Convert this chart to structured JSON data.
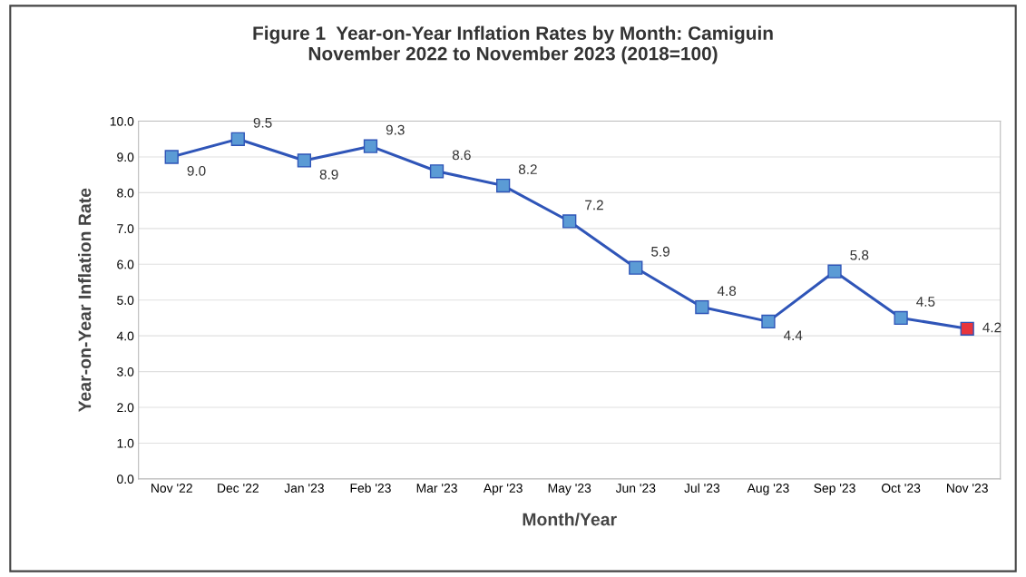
{
  "chart_data": {
    "type": "line",
    "title": "Figure 1  Year-on-Year Inflation Rates by Month: Camiguin\nNovember 2022 to November 2023 (2018=100)",
    "xlabel": "Month/Year",
    "ylabel": "Year-on-Year Inflation Rate",
    "categories": [
      "Nov '22",
      "Dec '22",
      "Jan '23",
      "Feb '23",
      "Mar '23",
      "Apr '23",
      "May '23",
      "Jun '23",
      "Jul '23",
      "Aug '23",
      "Sep '23",
      "Oct '23",
      "Nov '23"
    ],
    "series": [
      {
        "color": "#2f55b8",
        "values": [
          9.0,
          9.5,
          8.9,
          9.3,
          8.6,
          8.2,
          7.2,
          5.9,
          4.8,
          4.4,
          5.8,
          4.5,
          4.2
        ],
        "colors": [
          "#5b9bd5",
          "#5b9bd5",
          "#5b9bd5",
          "#5b9bd5",
          "#5b9bd5",
          "#5b9bd5",
          "#5b9bd5",
          "#5b9bd5",
          "#5b9bd5",
          "#5b9bd5",
          "#5b9bd5",
          "#5b9bd5",
          "#e8353d"
        ],
        "value_labels": [
          "9.0",
          "9.5",
          "8.9",
          "9.3",
          "8.6",
          "8.2",
          "7.2",
          "5.9",
          "4.8",
          "4.4",
          "5.8",
          "4.5",
          "4.2"
        ]
      }
    ],
    "ylim": [
      0,
      10
    ],
    "yticks": [
      {
        "value": 0,
        "label": "0.0"
      },
      {
        "value": 1,
        "label": "1.0"
      },
      {
        "value": 2,
        "label": "2.0"
      },
      {
        "value": 3,
        "label": "3.0"
      },
      {
        "value": 4,
        "label": "4.0"
      },
      {
        "value": 5,
        "label": "5.0"
      },
      {
        "value": 6,
        "label": "6.0"
      },
      {
        "value": 7,
        "label": "7.0"
      },
      {
        "value": 8,
        "label": "8.0"
      },
      {
        "value": 9,
        "label": "9.0"
      },
      {
        "value": 10,
        "label": "10.0"
      }
    ],
    "grid": "y",
    "marker": "square",
    "line_style": "solid"
  }
}
